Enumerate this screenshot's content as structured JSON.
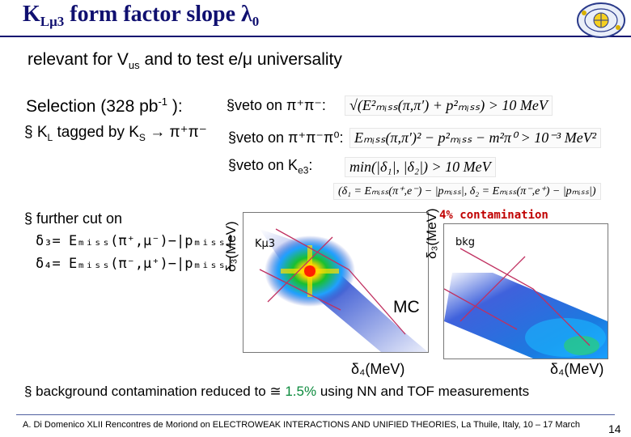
{
  "title": {
    "main": "K",
    "sub": "Lμ3",
    "rest": " form factor slope λ",
    "zero": "0"
  },
  "subtitle": {
    "pre": "relevant for V",
    "sub": "us",
    "post": " and to test e/μ universality"
  },
  "selection": {
    "pre": "Selection (328 pb",
    "sup": "-1",
    "post": " ):"
  },
  "kl_tag": {
    "bullet": "§",
    "pre": " K",
    "sub1": "L",
    "mid": " tagged by K",
    "sub2": "S",
    "post": " → π⁺π⁻"
  },
  "vetoes": [
    {
      "label": "§veto on π⁺π⁻:"
    },
    {
      "label": "§veto on π⁺π⁻π⁰:"
    },
    {
      "label": "§veto on K",
      "sub": "e3",
      "post": ":"
    }
  ],
  "formulas": {
    "f1": "√(E²ₘᵢₛₛ(π,π′) + p²ₘᵢₛₛ) > 10 MeV",
    "f2": "Eₘᵢₛₛ(π,π′)² − p²ₘᵢₛₛ − m²π⁰ > 10⁻³ MeV²",
    "f3": "min(|δ₁|, |δ₂|) > 10 MeV",
    "f4": "(δ₁ = Eₘᵢₛₛ(π⁺,e⁻) − |pₘᵢₛₛ|, δ₂ = Eₘᵢₛₛ(π⁻,e⁺) − |pₘᵢₛₛ|)"
  },
  "cut": {
    "line1": "§ further cut on",
    "line2": "δ₃= Eₘᵢₛₛ(π⁺,μ⁻)−|pₘᵢₛₛ|",
    "line3": "δ₄= Eₘᵢₛₛ(π⁻,μ⁺)−|pₘᵢₛₛ|"
  },
  "plots": {
    "left": {
      "ylabel": "δ₃(MeV)",
      "label": "Kμ3"
    },
    "right": {
      "ylabel": "δ₃(MeV)",
      "label": "bkg"
    },
    "contamination": "4% contamination",
    "mc": "MC",
    "xlabel_left": "δ₄(MeV)",
    "xlabel_right": "δ₄(MeV)"
  },
  "background_line": {
    "pre": "§ background contamination reduced to ≅ ",
    "value": "1.5%",
    "post": " using NN and TOF measurements"
  },
  "footer": "A. Di Domenico   XLII Rencontres de Moriond on ELECTROWEAK INTERACTIONS AND UNIFIED THEORIES, La Thuile, Italy, 10 – 17 March 2007",
  "page_number": "14",
  "colors": {
    "title": "#101070",
    "highlight": "#0b8a3c",
    "contamination": "#c00000"
  }
}
